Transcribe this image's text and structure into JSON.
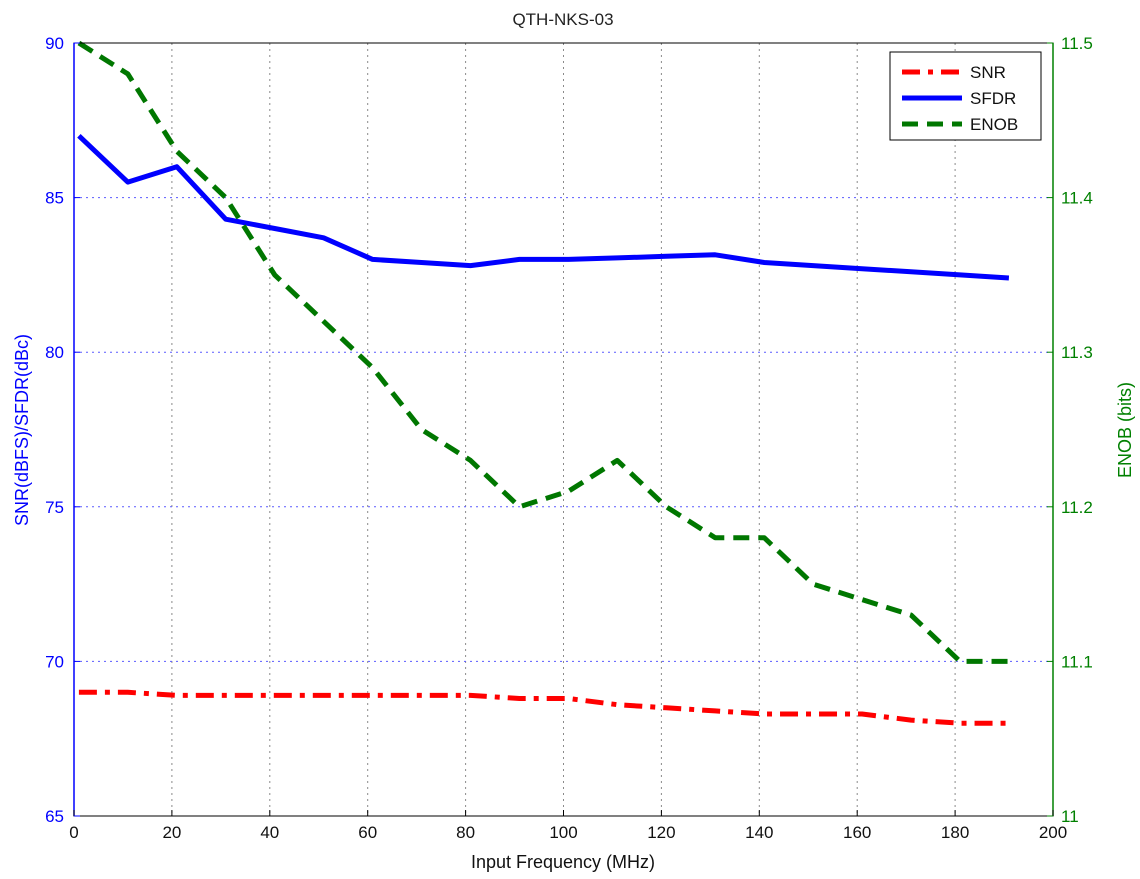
{
  "chart_data": {
    "type": "line",
    "title": "QTH-NKS-03",
    "xlabel": "Input Frequency (MHz)",
    "ylabel_left": "SNR(dBFS)/SFDR(dBc)",
    "ylabel_right": "ENOB (bits)",
    "xlim": [
      0,
      200
    ],
    "ylim_left": [
      65,
      90
    ],
    "ylim_right": [
      11.0,
      11.5
    ],
    "x_ticks": [
      0,
      20,
      40,
      60,
      80,
      100,
      120,
      140,
      160,
      180,
      200
    ],
    "y_left_ticks": [
      65,
      70,
      75,
      80,
      85,
      90
    ],
    "y_right_ticks": [
      11,
      11.1,
      11.2,
      11.3,
      11.4,
      11.5
    ],
    "grid": true,
    "legend_position": "top-right",
    "series": [
      {
        "name": "SNR",
        "axis": "left",
        "style": "dashdot",
        "color": "#ff0000",
        "x": [
          1,
          11,
          21,
          31,
          41,
          51,
          61,
          71,
          81,
          91,
          101,
          111,
          121,
          131,
          141,
          151,
          161,
          171,
          181,
          191
        ],
        "values": [
          69.0,
          69.0,
          68.9,
          68.9,
          68.9,
          68.9,
          68.9,
          68.9,
          68.9,
          68.8,
          68.8,
          68.6,
          68.5,
          68.4,
          68.3,
          68.3,
          68.3,
          68.1,
          68.0,
          68.0
        ]
      },
      {
        "name": "SFDR",
        "axis": "left",
        "style": "solid",
        "color": "#0000ff",
        "x": [
          1,
          11,
          21,
          31,
          41,
          51,
          61,
          71,
          81,
          91,
          101,
          111,
          121,
          131,
          141,
          151,
          161,
          171,
          181,
          191
        ],
        "values": [
          87.0,
          85.5,
          86.0,
          84.3,
          84.0,
          83.7,
          83.0,
          82.9,
          82.8,
          83.0,
          83.0,
          83.05,
          83.1,
          83.15,
          82.9,
          82.8,
          82.7,
          82.6,
          82.5,
          82.4
        ]
      },
      {
        "name": "ENOB",
        "axis": "right",
        "style": "dashed",
        "color": "#007700",
        "x": [
          1,
          11,
          21,
          31,
          41,
          51,
          61,
          71,
          81,
          91,
          101,
          111,
          121,
          131,
          141,
          151,
          161,
          171,
          181,
          191
        ],
        "values": [
          11.5,
          11.48,
          11.43,
          11.4,
          11.35,
          11.32,
          11.29,
          11.25,
          11.23,
          11.2,
          11.21,
          11.23,
          11.2,
          11.18,
          11.18,
          11.15,
          11.14,
          11.13,
          11.1,
          11.1
        ]
      }
    ]
  },
  "colors": {
    "left_axis": "#0000ff",
    "right_axis": "#008000",
    "grid": "#8a8a8a",
    "grid_horizontal": "#5a5aff"
  }
}
